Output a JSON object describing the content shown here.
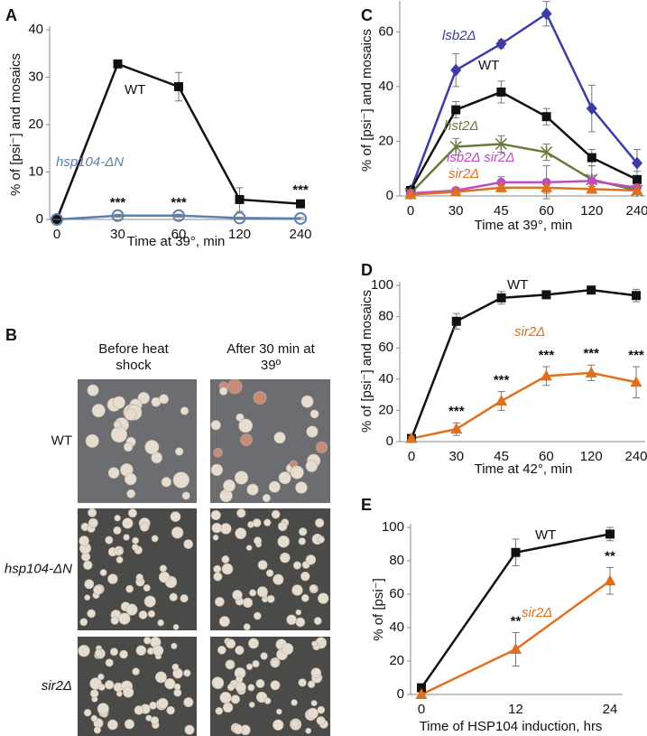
{
  "chart_data": [
    {
      "type": "line",
      "panel_label": "A",
      "x_label": "Time at 39°, min",
      "y_label": "% of [psi⁻] and mosaics",
      "categories": [
        0,
        30,
        60,
        120,
        240
      ],
      "ylim": [
        0,
        40
      ],
      "yticks": [
        0,
        10,
        20,
        30,
        40
      ],
      "series": [
        {
          "name": "WT",
          "color": "#111111",
          "marker": "square",
          "values": [
            0,
            32.8,
            28,
            4.2,
            3.3
          ],
          "errors": [
            0,
            0.6,
            3,
            2.5,
            0.5
          ]
        },
        {
          "name": "hsp104-ΔN",
          "color": "#5b7fae",
          "marker": "circle-open",
          "values": [
            0,
            0.8,
            0.8,
            0.3,
            0.2
          ],
          "errors": [
            0,
            0.3,
            0.3,
            0.2,
            0.2
          ]
        }
      ],
      "annotations": [
        {
          "text": "***",
          "x": 30,
          "series": "hsp104-ΔN"
        },
        {
          "text": "***",
          "x": 60,
          "series": "hsp104-ΔN"
        },
        {
          "text": "***",
          "x": 240,
          "series": "WT"
        }
      ]
    },
    {
      "type": "line",
      "panel_label": "C",
      "x_label": "Time at 39°, min",
      "y_label": "% of [psi⁻] and mosaics",
      "categories": [
        0,
        30,
        45,
        60,
        120,
        240
      ],
      "ylim": [
        0,
        70
      ],
      "yticks": [
        0,
        20,
        40,
        60
      ],
      "series": [
        {
          "name": "lsb2Δ",
          "color": "#3c3ca8",
          "marker": "diamond",
          "values": [
            2,
            46,
            55.6,
            66.6,
            32,
            12
          ],
          "errors": [
            0.5,
            6,
            1.5,
            4.5,
            8.5,
            5
          ]
        },
        {
          "name": "WT",
          "color": "#111111",
          "marker": "square",
          "values": [
            2,
            31.5,
            38,
            29,
            14,
            6
          ],
          "errors": [
            0.5,
            3,
            4,
            3,
            3,
            3
          ]
        },
        {
          "name": "hst2Δ",
          "color": "#6a7a3c",
          "marker": "asterisk",
          "values": [
            1,
            18,
            19,
            16,
            6,
            2
          ],
          "errors": [
            0.5,
            3,
            3,
            3,
            5,
            1
          ]
        },
        {
          "name": "lsb2Δ sir2Δ",
          "color": "#c04cc4",
          "marker": "circle",
          "values": [
            1,
            2,
            5,
            5,
            5.5,
            3
          ],
          "errors": [
            0.5,
            1,
            2,
            6,
            2,
            1
          ]
        },
        {
          "name": "sir2Δ",
          "color": "#e0701e",
          "marker": "triangle",
          "values": [
            0.5,
            1.5,
            3,
            3,
            2.5,
            2
          ],
          "errors": [
            0.3,
            1,
            1,
            2,
            1,
            1
          ]
        }
      ],
      "annotations": []
    },
    {
      "type": "line",
      "panel_label": "D",
      "x_label": "Time at 42°, min",
      "y_label": "% of [psi⁻] and mosaics",
      "categories": [
        0,
        30,
        45,
        60,
        120,
        240
      ],
      "ylim": [
        0,
        100
      ],
      "yticks": [
        0,
        20,
        40,
        60,
        80,
        100
      ],
      "series": [
        {
          "name": "WT",
          "color": "#111111",
          "marker": "square",
          "values": [
            2,
            77,
            92,
            94,
            97,
            93.5
          ],
          "errors": [
            1,
            5,
            4,
            2,
            2,
            4
          ]
        },
        {
          "name": "sir2Δ",
          "color": "#e0701e",
          "marker": "triangle",
          "values": [
            2,
            8,
            26,
            42,
            44,
            38
          ],
          "errors": [
            1,
            4,
            6,
            6,
            5,
            10
          ]
        }
      ],
      "annotations": [
        {
          "text": "***",
          "x": 30,
          "series": "sir2Δ"
        },
        {
          "text": "***",
          "x": 45,
          "series": "sir2Δ"
        },
        {
          "text": "***",
          "x": 60,
          "series": "sir2Δ"
        },
        {
          "text": "***",
          "x": 120,
          "series": "sir2Δ"
        },
        {
          "text": "***",
          "x": 240,
          "series": "sir2Δ"
        }
      ]
    },
    {
      "type": "line",
      "panel_label": "E",
      "x_label": "Time of HSP104 induction, hrs",
      "y_label": "% of [psi⁻]",
      "categories": [
        0,
        12,
        24
      ],
      "ylim": [
        0,
        100
      ],
      "yticks": [
        0,
        20,
        40,
        60,
        80,
        100
      ],
      "series": [
        {
          "name": "WT",
          "color": "#111111",
          "marker": "square",
          "values": [
            4,
            85,
            96
          ],
          "errors": [
            1,
            8,
            4
          ]
        },
        {
          "name": "sir2Δ",
          "color": "#e0701e",
          "marker": "triangle",
          "values": [
            0,
            27,
            68
          ],
          "errors": [
            0,
            10,
            8
          ]
        }
      ],
      "annotations": [
        {
          "text": "**",
          "x": 12,
          "series": "sir2Δ"
        },
        {
          "text": "**",
          "x": 24,
          "series": "sir2Δ"
        }
      ]
    }
  ],
  "photo_panel": {
    "label": "B",
    "column_headers": [
      "Before heat shock",
      "After 30 min at 39º"
    ],
    "row_labels": [
      "WT",
      "hsp104-ΔN",
      "sir2Δ"
    ]
  }
}
